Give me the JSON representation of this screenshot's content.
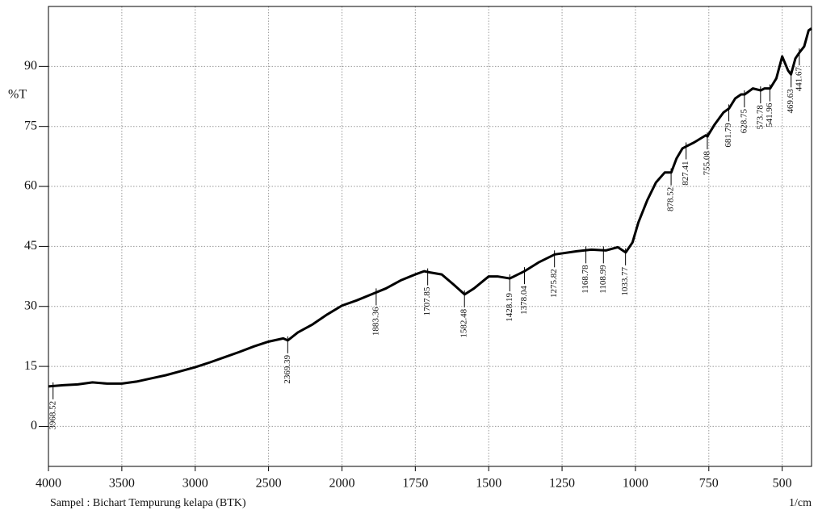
{
  "chart_data": {
    "type": "line",
    "ylabel": "%T",
    "xlabel": "1/cm",
    "caption": "Sampel : Bichart Tempurung kelapa (BTK)",
    "xlim": [
      4000,
      400
    ],
    "x_scale_break": 2000,
    "xticks": [
      4000,
      3500,
      3000,
      2500,
      2000,
      1750,
      1500,
      1250,
      1000,
      750,
      500
    ],
    "ylim": [
      -10,
      105
    ],
    "yticks": [
      0,
      15,
      30,
      45,
      60,
      75,
      90
    ],
    "grid": true,
    "series": [
      {
        "color": "#000000",
        "x": [
          4000,
          3900,
          3800,
          3700,
          3600,
          3500,
          3400,
          3300,
          3200,
          3100,
          3000,
          2900,
          2800,
          2700,
          2600,
          2500,
          2400,
          2369,
          2300,
          2200,
          2100,
          2000,
          1950,
          1900,
          1850,
          1800,
          1750,
          1720,
          1700,
          1660,
          1620,
          1582,
          1550,
          1500,
          1470,
          1428,
          1400,
          1378,
          1330,
          1275,
          1200,
          1150,
          1100,
          1060,
          1033,
          1010,
          990,
          960,
          930,
          900,
          878,
          860,
          840,
          827,
          800,
          760,
          755,
          730,
          700,
          681,
          660,
          640,
          628,
          600,
          573,
          560,
          541,
          520,
          500,
          480,
          470,
          455,
          441,
          425,
          410,
          400
        ],
        "values": [
          10,
          10.3,
          10.5,
          11,
          10.7,
          10.7,
          11.2,
          12,
          12.8,
          13.8,
          14.8,
          16,
          17.3,
          18.6,
          20,
          21.2,
          22,
          21.5,
          23.5,
          25.5,
          28,
          30.2,
          31.5,
          33,
          34.5,
          36.5,
          38,
          38.8,
          38.5,
          38,
          35.5,
          33,
          34.5,
          37.5,
          37.5,
          37,
          38,
          38.8,
          41,
          43,
          43.8,
          44.2,
          44,
          44.8,
          43.5,
          46,
          51,
          56.5,
          61,
          63.5,
          63.5,
          67,
          69.5,
          70,
          71,
          72.8,
          72.5,
          75.5,
          78.5,
          79.5,
          82,
          83,
          83,
          84.5,
          84,
          84.5,
          84.5,
          87,
          92.5,
          89,
          88,
          92,
          93.5,
          95,
          99,
          99.5
        ]
      }
    ],
    "peaks": {
      "x": [
        3968.52,
        2369.39,
        1883.36,
        1707.85,
        1582.48,
        1428.19,
        1378.04,
        1275.82,
        1168.78,
        1108.99,
        1033.77,
        878.52,
        827.41,
        755.08,
        681.79,
        628.75,
        573.78,
        541.96,
        469.63,
        441.67
      ],
      "y": [
        10,
        21.5,
        33.5,
        38.5,
        33,
        37,
        38.8,
        43,
        44,
        44,
        43.5,
        63.5,
        70,
        72.5,
        79.5,
        83,
        84,
        84.5,
        88,
        93.5
      ]
    }
  }
}
